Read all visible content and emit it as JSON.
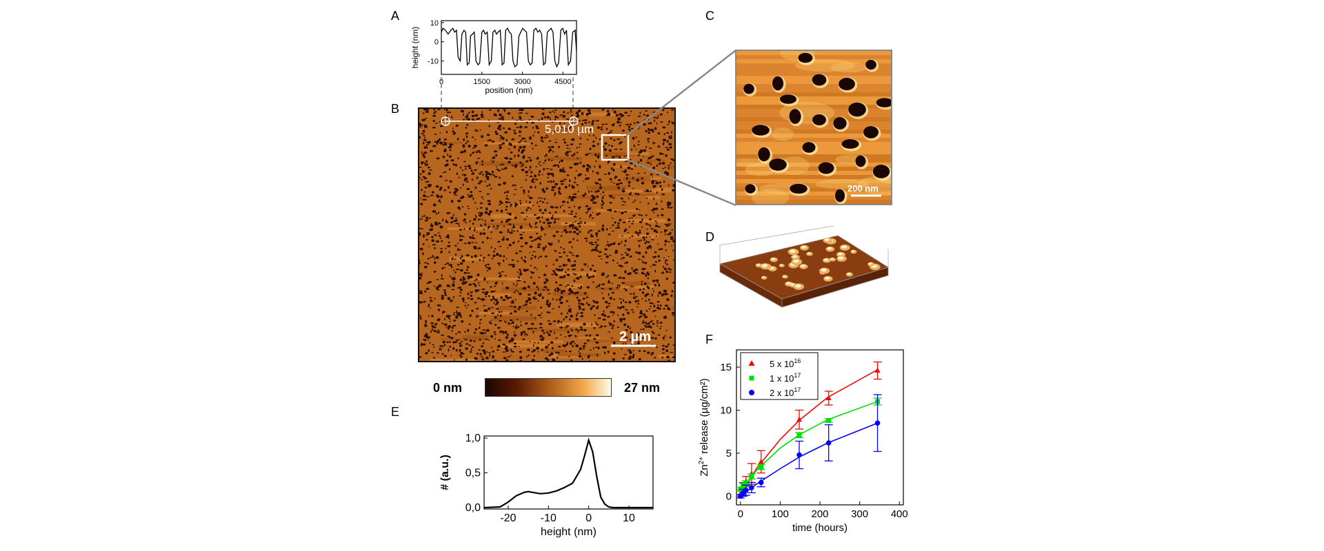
{
  "panel_letters": [
    "A",
    "B",
    "C",
    "D",
    "E",
    "F"
  ],
  "colors": {
    "afm_dark": "#1a0800",
    "afm_mid": "#b8651c",
    "afm_light": "#fffbe6",
    "series_red": "#ff0000",
    "series_green": "#00dd00",
    "series_blue": "#0000ff"
  },
  "panel_b": {
    "line_label": "5,010 µm",
    "scale_bar": "2 µm",
    "colorbar_min": "0 nm",
    "colorbar_max": "27 nm"
  },
  "panel_c": {
    "scale_bar": "200 nm"
  },
  "chart_data": [
    {
      "panel": "A",
      "type": "line",
      "xlabel": "position (nm)",
      "ylabel": "height (nm)",
      "xlim": [
        0,
        5000
      ],
      "ylim": [
        -17,
        11
      ],
      "xticks": [
        "0",
        "1500",
        "3000",
        "4500"
      ],
      "yticks": [
        "10",
        "0",
        "-10"
      ],
      "x": [
        0,
        60,
        150,
        250,
        350,
        430,
        490,
        560,
        620,
        700,
        760,
        840,
        900,
        960,
        1030,
        1080,
        1150,
        1220,
        1280,
        1360,
        1420,
        1500,
        1560,
        1620,
        1700,
        1770,
        1850,
        1910,
        1980,
        2040,
        2100,
        2180,
        2250,
        2320,
        2380,
        2450,
        2520,
        2590,
        2650,
        2720,
        2800,
        2870,
        2940,
        3010,
        3080,
        3150,
        3220,
        3290,
        3360,
        3420,
        3500,
        3570,
        3640,
        3710,
        3780,
        3850,
        3920,
        3990,
        4060,
        4130,
        4200,
        4270,
        4340,
        4420,
        4490,
        4560,
        4630,
        4700,
        4780,
        4860,
        4950,
        5000
      ],
      "y": [
        5,
        7,
        6,
        4,
        6,
        7,
        5,
        6,
        -8,
        -10,
        4,
        6,
        5,
        -12,
        -11,
        3,
        4,
        5,
        -10,
        -12,
        -11,
        5,
        6,
        4,
        5,
        -12,
        -10,
        5,
        6,
        4,
        5,
        6,
        -12,
        -11,
        6,
        7,
        5,
        4,
        -10,
        -13,
        -12,
        3,
        5,
        7,
        6,
        5,
        -10,
        -12,
        -11,
        6,
        7,
        5,
        6,
        4,
        -12,
        -11,
        5,
        6,
        7,
        5,
        -10,
        -13,
        -11,
        6,
        7,
        4,
        6,
        -12,
        -10,
        5,
        6,
        -5
      ]
    },
    {
      "panel": "E",
      "type": "line",
      "xlabel": "height (nm)",
      "ylabel": "# (a.u.)",
      "xlim": [
        -26,
        16
      ],
      "ylim": [
        0,
        1
      ],
      "xticks": [
        "-20",
        "-10",
        "0",
        "10"
      ],
      "yticks": [
        "0,0",
        "0,5",
        "1,0"
      ],
      "x": [
        -26,
        -22,
        -20,
        -18,
        -16,
        -15,
        -14,
        -12,
        -10,
        -8,
        -6,
        -4,
        -2,
        -1,
        0,
        1,
        2,
        3,
        4,
        5,
        6,
        10,
        16
      ],
      "y": [
        0,
        0.01,
        0.08,
        0.17,
        0.22,
        0.23,
        0.22,
        0.2,
        0.21,
        0.24,
        0.29,
        0.35,
        0.55,
        0.75,
        0.97,
        0.8,
        0.45,
        0.15,
        0.05,
        0.01,
        0,
        0,
        0
      ]
    },
    {
      "panel": "F",
      "type": "scatter",
      "xlabel": "time (hours)",
      "ylabel": "Zn2+ release (µg/cm²)",
      "xlim": [
        -10,
        410
      ],
      "ylim": [
        -1,
        17
      ],
      "xticks": [
        "0",
        "100",
        "200",
        "300",
        "400"
      ],
      "yticks": [
        "0",
        "5",
        "10",
        "15"
      ],
      "legend_position": "top-left",
      "series": [
        {
          "name": "5 x 10^16",
          "name_base": "5 x 10",
          "name_exp": "16",
          "color": "#ff0000",
          "marker": "triangle",
          "x": [
            0,
            7,
            14,
            28,
            52,
            148,
            222,
            345
          ],
          "y": [
            0.3,
            1.2,
            1.7,
            2.6,
            4.0,
            8.9,
            11.4,
            14.6
          ],
          "err": [
            0.3,
            0.4,
            0.6,
            1.2,
            1.3,
            1.1,
            0.8,
            1.0
          ],
          "fit": [
            [
              0,
              0
            ],
            [
              40,
              3.2
            ],
            [
              100,
              6.6
            ],
            [
              150,
              8.9
            ],
            [
              220,
              11.5
            ],
            [
              345,
              14.7
            ]
          ]
        },
        {
          "name": "1 x 10^17",
          "name_base": "1 x 10",
          "name_exp": "17",
          "color": "#00dd00",
          "marker": "square",
          "x": [
            0,
            7,
            14,
            28,
            52,
            148,
            222,
            345
          ],
          "y": [
            0.8,
            1.3,
            1.5,
            2.3,
            3.4,
            7.1,
            8.8,
            11.0
          ],
          "err": [
            0.2,
            0.2,
            0.3,
            0.3,
            0.3,
            0.3,
            0.2,
            0.4
          ],
          "fit": [
            [
              0,
              0.3
            ],
            [
              40,
              3.0
            ],
            [
              100,
              5.6
            ],
            [
              150,
              7.2
            ],
            [
              220,
              8.9
            ],
            [
              345,
              11.0
            ]
          ]
        },
        {
          "name": "2 x 10^17",
          "name_base": "2 x 10",
          "name_exp": "17",
          "color": "#0000ff",
          "marker": "circle",
          "x": [
            0,
            7,
            14,
            28,
            52,
            148,
            222,
            345
          ],
          "y": [
            0.0,
            0.4,
            0.7,
            1.0,
            1.6,
            4.8,
            6.2,
            8.5
          ],
          "err": [
            0.2,
            0.4,
            0.6,
            0.6,
            0.5,
            1.6,
            2.1,
            3.3
          ],
          "fit": [
            [
              0,
              0
            ],
            [
              40,
              1.4
            ],
            [
              100,
              3.2
            ],
            [
              150,
              4.6
            ],
            [
              220,
              6.2
            ],
            [
              345,
              8.5
            ]
          ]
        }
      ]
    }
  ]
}
